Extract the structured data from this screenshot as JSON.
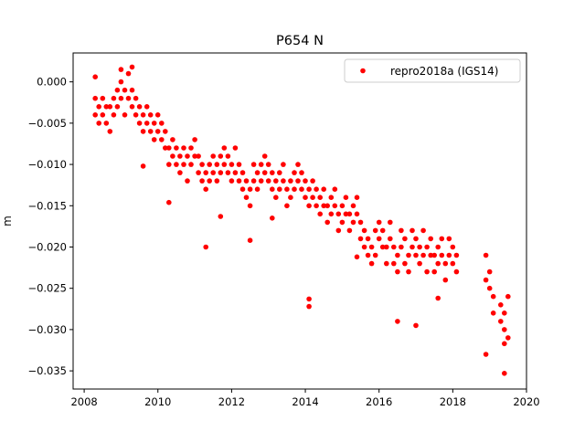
{
  "chart_data": {
    "type": "scatter",
    "title": "P654 N",
    "xlabel": "",
    "ylabel": "m",
    "xlim": [
      2007.7,
      2020.0
    ],
    "ylim": [
      -0.0372,
      0.0035
    ],
    "xticks": [
      2008,
      2010,
      2012,
      2014,
      2016,
      2018,
      2020
    ],
    "xtick_labels": [
      "2008",
      "2010",
      "2012",
      "2014",
      "2016",
      "2018",
      "2020"
    ],
    "yticks": [
      0.0,
      -0.005,
      -0.01,
      -0.015,
      -0.02,
      -0.025,
      -0.03,
      -0.035
    ],
    "ytick_labels": [
      "0.000",
      "−0.005",
      "−0.010",
      "−0.015",
      "−0.020",
      "−0.025",
      "−0.030",
      "−0.035"
    ],
    "grid": false,
    "legend_position": "top-right",
    "series": [
      {
        "name": "repro2018a (IGS14)",
        "color": "#ff0000",
        "marker": "circle",
        "points": [
          [
            2008.3,
            -0.002
          ],
          [
            2008.3,
            -0.004
          ],
          [
            2008.4,
            -0.003
          ],
          [
            2008.4,
            -0.005
          ],
          [
            2008.5,
            -0.004
          ],
          [
            2008.5,
            -0.002
          ],
          [
            2008.6,
            -0.005
          ],
          [
            2008.6,
            -0.003
          ],
          [
            2008.7,
            -0.003
          ],
          [
            2008.7,
            -0.006
          ],
          [
            2008.8,
            -0.002
          ],
          [
            2008.8,
            -0.004
          ],
          [
            2008.9,
            -0.001
          ],
          [
            2008.9,
            -0.003
          ],
          [
            2009.0,
            0.0
          ],
          [
            2009.0,
            -0.002
          ],
          [
            2009.1,
            -0.001
          ],
          [
            2009.1,
            -0.004
          ],
          [
            2009.2,
            -0.002
          ],
          [
            2009.2,
            0.001
          ],
          [
            2009.3,
            -0.003
          ],
          [
            2009.3,
            -0.001
          ],
          [
            2009.4,
            -0.004
          ],
          [
            2009.4,
            -0.002
          ],
          [
            2009.5,
            -0.003
          ],
          [
            2009.5,
            -0.005
          ],
          [
            2009.6,
            -0.004
          ],
          [
            2009.6,
            -0.006
          ],
          [
            2009.7,
            -0.005
          ],
          [
            2009.7,
            -0.003
          ],
          [
            2009.8,
            -0.006
          ],
          [
            2009.8,
            -0.004
          ],
          [
            2009.9,
            -0.005
          ],
          [
            2009.9,
            -0.007
          ],
          [
            2010.0,
            -0.006
          ],
          [
            2010.0,
            -0.004
          ],
          [
            2010.1,
            -0.007
          ],
          [
            2010.1,
            -0.005
          ],
          [
            2010.2,
            -0.006
          ],
          [
            2010.2,
            -0.008
          ],
          [
            2010.3,
            -0.008
          ],
          [
            2010.3,
            -0.01
          ],
          [
            2010.4,
            -0.009
          ],
          [
            2010.4,
            -0.007
          ],
          [
            2010.5,
            -0.008
          ],
          [
            2010.5,
            -0.01
          ],
          [
            2010.6,
            -0.009
          ],
          [
            2010.6,
            -0.011
          ],
          [
            2010.7,
            -0.01
          ],
          [
            2010.7,
            -0.008
          ],
          [
            2010.8,
            -0.009
          ],
          [
            2010.8,
            -0.012
          ],
          [
            2010.9,
            -0.008
          ],
          [
            2010.9,
            -0.01
          ],
          [
            2011.0,
            -0.007
          ],
          [
            2011.0,
            -0.009
          ],
          [
            2011.1,
            -0.009
          ],
          [
            2011.1,
            -0.011
          ],
          [
            2011.2,
            -0.01
          ],
          [
            2011.2,
            -0.012
          ],
          [
            2011.3,
            -0.011
          ],
          [
            2011.3,
            -0.013
          ],
          [
            2011.4,
            -0.012
          ],
          [
            2011.4,
            -0.01
          ],
          [
            2011.5,
            -0.011
          ],
          [
            2011.5,
            -0.009
          ],
          [
            2011.6,
            -0.01
          ],
          [
            2011.6,
            -0.012
          ],
          [
            2011.7,
            -0.009
          ],
          [
            2011.7,
            -0.011
          ],
          [
            2011.8,
            -0.01
          ],
          [
            2011.8,
            -0.008
          ],
          [
            2011.9,
            -0.009
          ],
          [
            2011.9,
            -0.011
          ],
          [
            2012.0,
            -0.01
          ],
          [
            2012.0,
            -0.012
          ],
          [
            2012.1,
            -0.011
          ],
          [
            2012.1,
            -0.008
          ],
          [
            2012.2,
            -0.012
          ],
          [
            2012.2,
            -0.01
          ],
          [
            2012.3,
            -0.013
          ],
          [
            2012.3,
            -0.011
          ],
          [
            2012.4,
            -0.012
          ],
          [
            2012.4,
            -0.014
          ],
          [
            2012.5,
            -0.013
          ],
          [
            2012.5,
            -0.015
          ],
          [
            2012.6,
            -0.012
          ],
          [
            2012.6,
            -0.01
          ],
          [
            2012.7,
            -0.011
          ],
          [
            2012.7,
            -0.013
          ],
          [
            2012.8,
            -0.01
          ],
          [
            2012.8,
            -0.012
          ],
          [
            2012.9,
            -0.011
          ],
          [
            2012.9,
            -0.009
          ],
          [
            2013.0,
            -0.012
          ],
          [
            2013.0,
            -0.01
          ],
          [
            2013.1,
            -0.013
          ],
          [
            2013.1,
            -0.011
          ],
          [
            2013.2,
            -0.012
          ],
          [
            2013.2,
            -0.014
          ],
          [
            2013.3,
            -0.011
          ],
          [
            2013.3,
            -0.013
          ],
          [
            2013.4,
            -0.012
          ],
          [
            2013.4,
            -0.01
          ],
          [
            2013.5,
            -0.013
          ],
          [
            2013.5,
            -0.015
          ],
          [
            2013.6,
            -0.012
          ],
          [
            2013.6,
            -0.014
          ],
          [
            2013.7,
            -0.011
          ],
          [
            2013.7,
            -0.013
          ],
          [
            2013.8,
            -0.012
          ],
          [
            2013.8,
            -0.01
          ],
          [
            2013.9,
            -0.013
          ],
          [
            2013.9,
            -0.011
          ],
          [
            2014.0,
            -0.012
          ],
          [
            2014.0,
            -0.014
          ],
          [
            2014.1,
            -0.013
          ],
          [
            2014.1,
            -0.015
          ],
          [
            2014.2,
            -0.014
          ],
          [
            2014.2,
            -0.012
          ],
          [
            2014.3,
            -0.015
          ],
          [
            2014.3,
            -0.013
          ],
          [
            2014.4,
            -0.014
          ],
          [
            2014.4,
            -0.016
          ],
          [
            2014.5,
            -0.013
          ],
          [
            2014.5,
            -0.015
          ],
          [
            2014.6,
            -0.015
          ],
          [
            2014.6,
            -0.017
          ],
          [
            2014.7,
            -0.016
          ],
          [
            2014.7,
            -0.014
          ],
          [
            2014.8,
            -0.015
          ],
          [
            2014.8,
            -0.013
          ],
          [
            2014.9,
            -0.016
          ],
          [
            2014.9,
            -0.018
          ],
          [
            2015.0,
            -0.015
          ],
          [
            2015.0,
            -0.017
          ],
          [
            2015.1,
            -0.014
          ],
          [
            2015.1,
            -0.016
          ],
          [
            2015.2,
            -0.016
          ],
          [
            2015.2,
            -0.018
          ],
          [
            2015.3,
            -0.017
          ],
          [
            2015.3,
            -0.015
          ],
          [
            2015.4,
            -0.016
          ],
          [
            2015.4,
            -0.014
          ],
          [
            2015.5,
            -0.017
          ],
          [
            2015.5,
            -0.019
          ],
          [
            2015.6,
            -0.018
          ],
          [
            2015.6,
            -0.02
          ],
          [
            2015.7,
            -0.019
          ],
          [
            2015.7,
            -0.021
          ],
          [
            2015.8,
            -0.02
          ],
          [
            2015.8,
            -0.022
          ],
          [
            2015.9,
            -0.018
          ],
          [
            2015.9,
            -0.021
          ],
          [
            2016.0,
            -0.019
          ],
          [
            2016.0,
            -0.017
          ],
          [
            2016.1,
            -0.018
          ],
          [
            2016.1,
            -0.02
          ],
          [
            2016.2,
            -0.02
          ],
          [
            2016.2,
            -0.022
          ],
          [
            2016.3,
            -0.019
          ],
          [
            2016.3,
            -0.017
          ],
          [
            2016.4,
            -0.02
          ],
          [
            2016.4,
            -0.022
          ],
          [
            2016.5,
            -0.021
          ],
          [
            2016.5,
            -0.023
          ],
          [
            2016.6,
            -0.02
          ],
          [
            2016.6,
            -0.018
          ],
          [
            2016.7,
            -0.019
          ],
          [
            2016.7,
            -0.022
          ],
          [
            2016.8,
            -0.021
          ],
          [
            2016.8,
            -0.023
          ],
          [
            2016.9,
            -0.02
          ],
          [
            2016.9,
            -0.018
          ],
          [
            2017.0,
            -0.019
          ],
          [
            2017.0,
            -0.021
          ],
          [
            2017.1,
            -0.02
          ],
          [
            2017.1,
            -0.022
          ],
          [
            2017.2,
            -0.021
          ],
          [
            2017.2,
            -0.018
          ],
          [
            2017.3,
            -0.02
          ],
          [
            2017.3,
            -0.023
          ],
          [
            2017.4,
            -0.019
          ],
          [
            2017.4,
            -0.021
          ],
          [
            2017.5,
            -0.021
          ],
          [
            2017.5,
            -0.023
          ],
          [
            2017.6,
            -0.022
          ],
          [
            2017.6,
            -0.02
          ],
          [
            2017.7,
            -0.021
          ],
          [
            2017.7,
            -0.019
          ],
          [
            2017.8,
            -0.022
          ],
          [
            2017.8,
            -0.024
          ],
          [
            2017.9,
            -0.021
          ],
          [
            2017.9,
            -0.019
          ],
          [
            2018.0,
            -0.02
          ],
          [
            2018.0,
            -0.022
          ],
          [
            2018.1,
            -0.021
          ],
          [
            2018.1,
            -0.023
          ],
          [
            2018.9,
            -0.021
          ],
          [
            2018.9,
            -0.024
          ],
          [
            2019.0,
            -0.023
          ],
          [
            2019.0,
            -0.025
          ],
          [
            2019.1,
            -0.026
          ],
          [
            2019.1,
            -0.028
          ],
          [
            2019.3,
            -0.027
          ],
          [
            2019.3,
            -0.029
          ],
          [
            2019.4,
            -0.03
          ],
          [
            2019.4,
            -0.028
          ],
          [
            2019.5,
            -0.031
          ],
          [
            2019.5,
            -0.026
          ],
          [
            2014.1,
            -0.0263
          ],
          [
            2014.1,
            -0.0272
          ],
          [
            2019.4,
            -0.0353
          ],
          [
            2011.3,
            -0.02
          ],
          [
            2019.4,
            -0.0317
          ],
          [
            2009.0,
            0.0015
          ],
          [
            2009.3,
            0.0018
          ],
          [
            2008.3,
            0.0006
          ],
          [
            2016.5,
            -0.029
          ],
          [
            2017.0,
            -0.0295
          ],
          [
            2010.3,
            -0.0146
          ],
          [
            2018.9,
            -0.033
          ],
          [
            2012.5,
            -0.0192
          ],
          [
            2015.4,
            -0.0212
          ],
          [
            2011.7,
            -0.0163
          ],
          [
            2013.1,
            -0.0165
          ],
          [
            2017.6,
            -0.0262
          ],
          [
            2009.6,
            -0.0102
          ]
        ]
      }
    ]
  }
}
